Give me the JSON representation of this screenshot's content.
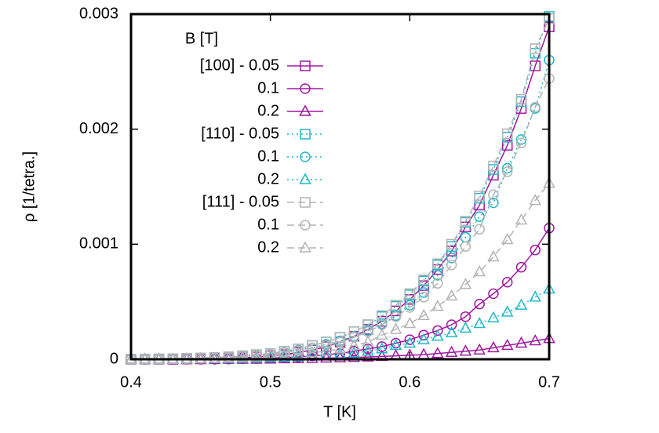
{
  "chart_data": {
    "type": "line",
    "xlabel": "T [K]",
    "ylabel": "ρ [1/tetra.]",
    "legend_title": "B [T]",
    "legend": "top-left",
    "xlim": [
      0.4,
      0.7
    ],
    "xticks": [
      0.4,
      0.5,
      0.6,
      0.7
    ],
    "ylim": [
      0,
      0.003
    ],
    "yticks": [
      0,
      0.001,
      0.002,
      0.003
    ],
    "x": [
      0.4,
      0.41,
      0.42,
      0.43,
      0.44,
      0.45,
      0.46,
      0.47,
      0.48,
      0.49,
      0.5,
      0.51,
      0.52,
      0.53,
      0.54,
      0.55,
      0.56,
      0.57,
      0.58,
      0.59,
      0.6,
      0.61,
      0.62,
      0.63,
      0.64,
      0.65,
      0.66,
      0.67,
      0.68,
      0.69,
      0.7
    ],
    "series": [
      {
        "name": "[100] - 0.05",
        "color": "#a0189f",
        "dash": "solid",
        "marker": "square",
        "values": [
          0,
          0,
          0,
          0,
          2e-06,
          3e-06,
          5e-06,
          8e-06,
          1.2e-05,
          2e-05,
          3e-05,
          4e-05,
          6e-05,
          8e-05,
          0.00011,
          0.00015,
          0.0002,
          0.00026,
          0.00033,
          0.00042,
          0.00052,
          0.00064,
          0.00078,
          0.00094,
          0.00115,
          0.00134,
          0.0016,
          0.00186,
          0.00218,
          0.00255,
          0.00289
        ]
      },
      {
        "name": "0.1",
        "color": "#a0189f",
        "dash": "solid",
        "marker": "circle",
        "values": [
          0,
          0,
          0,
          0,
          0,
          0,
          0,
          2e-06,
          4e-06,
          7e-06,
          1e-05,
          1.5e-05,
          2e-05,
          3e-05,
          4e-05,
          5e-05,
          7e-05,
          9e-05,
          0.00011,
          0.00014,
          0.00017,
          0.00021,
          0.00025,
          0.0003,
          0.00037,
          0.00048,
          0.00057,
          0.00067,
          0.0008,
          0.00095,
          0.00114
        ]
      },
      {
        "name": "0.2",
        "color": "#a0189f",
        "dash": "solid",
        "marker": "triangle",
        "values": [
          0,
          0,
          0,
          0,
          0,
          0,
          0,
          0,
          0,
          0,
          2e-06,
          4e-06,
          6e-06,
          8e-06,
          1e-05,
          1.3e-05,
          1.6e-05,
          2e-05,
          2.5e-05,
          3e-05,
          3.5e-05,
          4e-05,
          5e-05,
          6e-05,
          7e-05,
          8e-05,
          0.0001,
          0.00012,
          0.00014,
          0.00016,
          0.00018
        ]
      },
      {
        "name": "[110] - 0.05",
        "color": "#1fb8c8",
        "dash": "dotted",
        "marker": "square",
        "values": [
          1e-06,
          2e-06,
          3e-06,
          5e-06,
          7e-06,
          1e-05,
          1.5e-05,
          2e-05,
          3e-05,
          4e-05,
          5e-05,
          7e-05,
          9e-05,
          0.00012,
          0.00015,
          0.00019,
          0.00024,
          0.0003,
          0.00037,
          0.00046,
          0.00056,
          0.00068,
          0.00082,
          0.00098,
          0.00119,
          0.0014,
          0.00165,
          0.00193,
          0.00224,
          0.00266,
          0.00298
        ]
      },
      {
        "name": "0.1",
        "color": "#1fb8c8",
        "dash": "dotted",
        "marker": "circle",
        "values": [
          1e-06,
          2e-06,
          3e-06,
          4e-06,
          6e-06,
          8e-06,
          1.2e-05,
          1.7e-05,
          2.5e-05,
          3.4e-05,
          4.3e-05,
          6e-05,
          8e-05,
          0.0001,
          0.00013,
          0.00016,
          0.0002,
          0.00025,
          0.00031,
          0.00038,
          0.00047,
          0.00058,
          0.00073,
          0.00088,
          0.00106,
          0.00124,
          0.00136,
          0.00166,
          0.00191,
          0.00218,
          0.0026
        ]
      },
      {
        "name": "0.2",
        "color": "#1fb8c8",
        "dash": "dotted",
        "marker": "triangle",
        "values": [
          0,
          0,
          0,
          0,
          2e-06,
          3e-06,
          4e-06,
          6e-06,
          8e-06,
          1e-05,
          1.3e-05,
          1.7e-05,
          2.2e-05,
          2.8e-05,
          3.5e-05,
          4.5e-05,
          5.5e-05,
          7e-05,
          9e-05,
          0.00012,
          0.00014,
          0.00017,
          0.0002,
          0.00023,
          0.00027,
          0.00031,
          0.00036,
          0.00041,
          0.00047,
          0.00054,
          0.00061
        ]
      },
      {
        "name": "[111] - 0.05",
        "color": "#b4b4b4",
        "dash": "dashed",
        "marker": "square",
        "values": [
          1e-06,
          2e-06,
          3e-06,
          5e-06,
          8e-06,
          1.1e-05,
          1.6e-05,
          2.2e-05,
          3e-05,
          4e-05,
          5e-05,
          7e-05,
          9e-05,
          0.00012,
          0.00015,
          0.00019,
          0.00024,
          0.0003,
          0.00038,
          0.00047,
          0.00057,
          0.00069,
          0.00083,
          0.001,
          0.0012,
          0.00142,
          0.00168,
          0.00196,
          0.00226,
          0.0027,
          0.00296
        ]
      },
      {
        "name": "0.1",
        "color": "#b4b4b4",
        "dash": "dashed",
        "marker": "circle",
        "values": [
          1e-06,
          2e-06,
          3e-06,
          4e-06,
          6e-06,
          8e-06,
          1.2e-05,
          1.7e-05,
          2.4e-05,
          3.2e-05,
          4.2e-05,
          5.7e-05,
          7.5e-05,
          0.0001,
          0.00012,
          0.00015,
          0.00019,
          0.00024,
          0.0003,
          0.00037,
          0.00045,
          0.00054,
          0.00066,
          0.00082,
          0.00098,
          0.00113,
          0.00143,
          0.00163,
          0.00188,
          0.00219,
          0.00244
        ]
      },
      {
        "name": "0.2",
        "color": "#b4b4b4",
        "dash": "dashed",
        "marker": "triangle",
        "values": [
          1e-06,
          1e-06,
          2e-06,
          3e-06,
          4e-06,
          6e-06,
          8e-06,
          1.1e-05,
          1.5e-05,
          2e-05,
          2.6e-05,
          3.4e-05,
          4.4e-05,
          5.7e-05,
          7e-05,
          9e-05,
          0.00012,
          0.00015,
          0.00021,
          0.00026,
          0.00031,
          0.00038,
          0.00046,
          0.00055,
          0.00065,
          0.00076,
          0.00089,
          0.00104,
          0.00121,
          0.00138,
          0.00153
        ]
      }
    ]
  }
}
